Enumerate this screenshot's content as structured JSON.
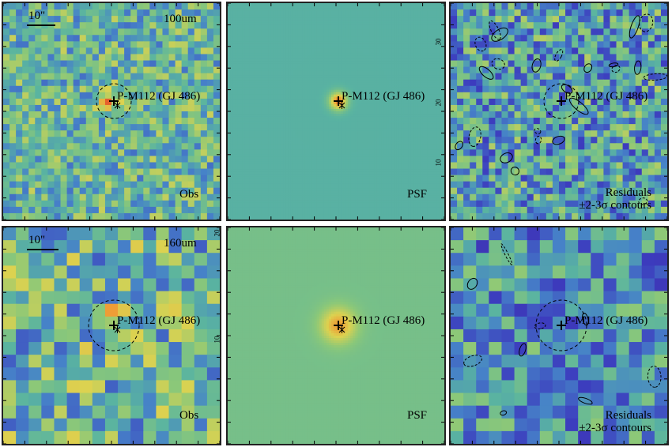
{
  "panels": {
    "obs100": {
      "scale": "10\"",
      "band": "100um",
      "label": "Obs",
      "target": "P-M112 (GJ 486)"
    },
    "psf100": {
      "label": "PSF",
      "target": "P-M112 (GJ 486)"
    },
    "res100": {
      "label_line1": "Residuals",
      "label_line2": "±2-3σ contours",
      "target": "P-M112 (GJ 486)"
    },
    "obs160": {
      "scale": "10\"",
      "band": "160um",
      "label": "Obs",
      "target": "P-M112 (GJ 486)"
    },
    "psf160": {
      "label": "PSF",
      "target": "P-M112 (GJ 486)"
    },
    "res160": {
      "label_line1": "Residuals",
      "label_line2": "±2-3σ contours",
      "target": "P-M112 (GJ 486)"
    }
  },
  "tick_labels": {
    "top_right_a": "30",
    "top_right_b": "20",
    "top_right_c": "10",
    "bottom_right_a": "20",
    "bottom_right_b": "10"
  },
  "colors": {
    "frame": "#222222",
    "text": "#000000"
  }
}
